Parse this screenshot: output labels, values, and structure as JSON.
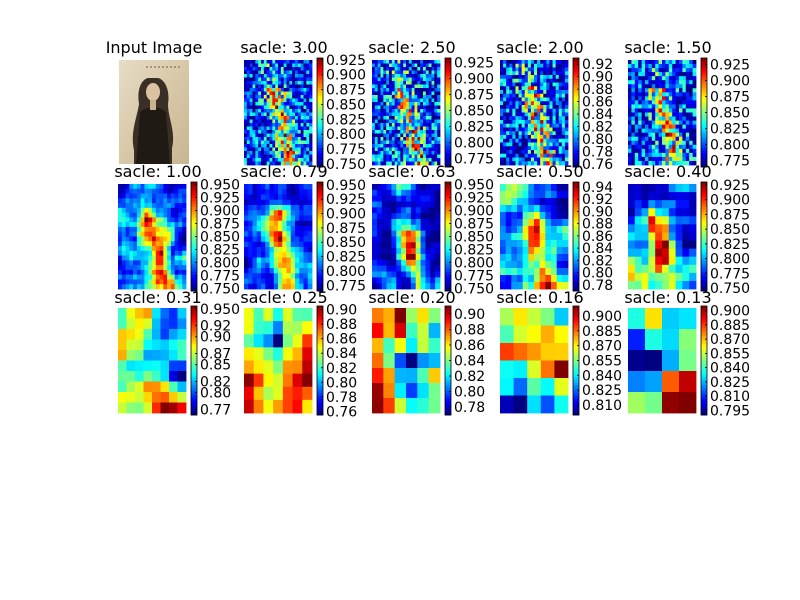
{
  "chart_data": {
    "type": "heatmap",
    "title": "",
    "grid": false,
    "input_panel": {
      "title": "Input Image"
    },
    "colormap": "jet",
    "panels": [
      {
        "title": "sacle: 3.00",
        "ticks": [
          "0.925",
          "0.900",
          "0.875",
          "0.850",
          "0.825",
          "0.800",
          "0.775",
          "0.750"
        ],
        "cmin": 0.745,
        "cmax": 0.928,
        "cols": 24,
        "rows": 30,
        "seed": 11,
        "blur": 0,
        "bias": -0.28,
        "figure": 0.34
      },
      {
        "title": "sacle: 2.50",
        "ticks": [
          "0.925",
          "0.900",
          "0.875",
          "0.850",
          "0.825",
          "0.800",
          "0.775"
        ],
        "cmin": 0.762,
        "cmax": 0.932,
        "cols": 24,
        "rows": 30,
        "seed": 23,
        "blur": 0,
        "bias": -0.32,
        "figure": 0.3
      },
      {
        "title": "sacle: 2.00",
        "ticks": [
          "0.92",
          "0.90",
          "0.88",
          "0.86",
          "0.84",
          "0.82",
          "0.80",
          "0.78",
          "0.76"
        ],
        "cmin": 0.755,
        "cmax": 0.93,
        "cols": 22,
        "rows": 28,
        "seed": 37,
        "blur": 0,
        "bias": -0.3,
        "figure": 0.3
      },
      {
        "title": "sacle: 1.50",
        "ticks": [
          "0.925",
          "0.900",
          "0.875",
          "0.850",
          "0.825",
          "0.800",
          "0.775"
        ],
        "cmin": 0.765,
        "cmax": 0.935,
        "cols": 20,
        "rows": 26,
        "seed": 41,
        "blur": 0,
        "bias": -0.3,
        "figure": 0.32
      },
      {
        "title": "sacle: 1.00",
        "ticks": [
          "0.950",
          "0.925",
          "0.900",
          "0.875",
          "0.850",
          "0.825",
          "0.800",
          "0.775",
          "0.750"
        ],
        "cmin": 0.745,
        "cmax": 0.955,
        "cols": 18,
        "rows": 22,
        "seed": 53,
        "blur": 1,
        "bias": -0.15,
        "figure": 0.3
      },
      {
        "title": "sacle: 0.79",
        "ticks": [
          "0.950",
          "0.925",
          "0.900",
          "0.875",
          "0.850",
          "0.825",
          "0.800",
          "0.775"
        ],
        "cmin": 0.765,
        "cmax": 0.955,
        "cols": 16,
        "rows": 20,
        "seed": 67,
        "blur": 1,
        "bias": -0.2,
        "figure": 0.28
      },
      {
        "title": "sacle: 0.63",
        "ticks": [
          "0.950",
          "0.925",
          "0.900",
          "0.875",
          "0.850",
          "0.825",
          "0.800",
          "0.775",
          "0.750"
        ],
        "cmin": 0.745,
        "cmax": 0.955,
        "cols": 14,
        "rows": 18,
        "seed": 71,
        "blur": 1,
        "bias": -0.2,
        "figure": 0.26
      },
      {
        "title": "sacle: 0.50",
        "ticks": [
          "0.94",
          "0.92",
          "0.90",
          "0.88",
          "0.86",
          "0.84",
          "0.82",
          "0.80",
          "0.78"
        ],
        "cmin": 0.77,
        "cmax": 0.948,
        "cols": 12,
        "rows": 15,
        "seed": 83,
        "blur": 1,
        "bias": -0.2,
        "figure": 0.22
      },
      {
        "title": "sacle: 0.40",
        "ticks": [
          "0.925",
          "0.900",
          "0.875",
          "0.850",
          "0.825",
          "0.800",
          "0.775",
          "0.750"
        ],
        "cmin": 0.745,
        "cmax": 0.93,
        "cols": 10,
        "rows": 13,
        "seed": 97,
        "blur": 1,
        "bias": -0.2,
        "figure": 0.2
      },
      {
        "title": "sacle: 0.31",
        "ticks": [
          "0.950",
          "0.92",
          "0.90",
          "0.87",
          "0.85",
          "0.82",
          "0.80",
          "0.77"
        ],
        "cmin": 0.76,
        "cmax": 0.955,
        "cols": 8,
        "rows": 10,
        "seed": 101,
        "blur": 1,
        "bias": 0.0,
        "figure": 0.15
      },
      {
        "title": "sacle: 0.25",
        "ticks": [
          "0.90",
          "0.88",
          "0.86",
          "0.84",
          "0.82",
          "0.80",
          "0.78",
          "0.76"
        ],
        "cmin": 0.755,
        "cmax": 0.905,
        "cols": 7,
        "rows": 8,
        "seed": 113,
        "blur": 1,
        "bias": 0.3,
        "figure": 0.1
      },
      {
        "title": "sacle: 0.20",
        "ticks": [
          "0.90",
          "0.88",
          "0.86",
          "0.84",
          "0.82",
          "0.80",
          "0.78"
        ],
        "cmin": 0.77,
        "cmax": 0.91,
        "cols": 6,
        "rows": 7,
        "seed": 127,
        "blur": 1,
        "bias": 0.25,
        "figure": 0.05
      },
      {
        "title": "sacle: 0.16",
        "ticks": [
          "0.900",
          "0.885",
          "0.870",
          "0.855",
          "0.840",
          "0.825",
          "0.810"
        ],
        "cmin": 0.8,
        "cmax": 0.91,
        "cols": 5,
        "rows": 6,
        "seed": 131,
        "blur": 1,
        "bias": -0.05,
        "figure": 0.0
      },
      {
        "title": "sacle: 0.13",
        "ticks": [
          "0.900",
          "0.885",
          "0.870",
          "0.855",
          "0.840",
          "0.825",
          "0.810",
          "0.795"
        ],
        "cmin": 0.79,
        "cmax": 0.905,
        "cols": 4,
        "rows": 5,
        "seed": 149,
        "blur": 1,
        "bias": 0.1,
        "figure": 0.0
      }
    ]
  }
}
